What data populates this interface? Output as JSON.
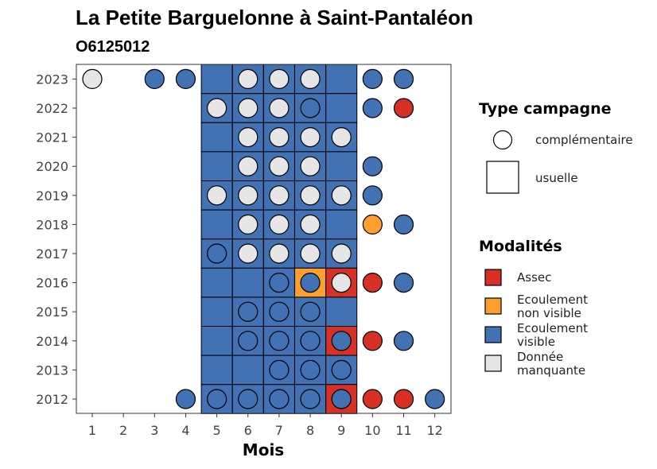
{
  "chart_data": {
    "type": "heatmap",
    "title": "La Petite Barguelonne à Saint-Pantaléon",
    "subtitle": "O6125012",
    "xlabel": "Mois",
    "ylabel": "",
    "x_ticks": [
      "1",
      "2",
      "3",
      "4",
      "5",
      "6",
      "7",
      "8",
      "9",
      "10",
      "11",
      "12"
    ],
    "y_ticks": [
      "2012",
      "2013",
      "2014",
      "2015",
      "2016",
      "2017",
      "2018",
      "2019",
      "2020",
      "2021",
      "2022",
      "2023"
    ],
    "grid": false,
    "legend_placement": "right",
    "shape_legend": {
      "title": "Type campagne",
      "entries": [
        {
          "label": "complémentaire",
          "shape": "circle"
        },
        {
          "label": "usuelle",
          "shape": "square"
        }
      ]
    },
    "color_legend": {
      "title": "Modalités",
      "entries": [
        {
          "key": "A",
          "label": [
            "Assec"
          ],
          "color": "#d73027"
        },
        {
          "key": "N",
          "label": [
            "Ecoulement",
            "non visible"
          ],
          "color": "#fd9f2f"
        },
        {
          "key": "V",
          "label": [
            "Ecoulement",
            "visible"
          ],
          "color": "#4271b4"
        },
        {
          "key": "M",
          "label": [
            "Donnée",
            "manquante"
          ],
          "color": "#e6e6e6"
        }
      ]
    },
    "squares": [
      {
        "year": 2023,
        "month": 5,
        "value": "V"
      },
      {
        "year": 2023,
        "month": 6,
        "value": "V"
      },
      {
        "year": 2023,
        "month": 7,
        "value": "V"
      },
      {
        "year": 2023,
        "month": 8,
        "value": "V"
      },
      {
        "year": 2023,
        "month": 9,
        "value": "V"
      },
      {
        "year": 2022,
        "month": 5,
        "value": "V"
      },
      {
        "year": 2022,
        "month": 6,
        "value": "V"
      },
      {
        "year": 2022,
        "month": 7,
        "value": "V"
      },
      {
        "year": 2022,
        "month": 8,
        "value": "V"
      },
      {
        "year": 2022,
        "month": 9,
        "value": "V"
      },
      {
        "year": 2021,
        "month": 5,
        "value": "V"
      },
      {
        "year": 2021,
        "month": 6,
        "value": "V"
      },
      {
        "year": 2021,
        "month": 7,
        "value": "V"
      },
      {
        "year": 2021,
        "month": 8,
        "value": "V"
      },
      {
        "year": 2021,
        "month": 9,
        "value": "V"
      },
      {
        "year": 2020,
        "month": 5,
        "value": "V"
      },
      {
        "year": 2020,
        "month": 6,
        "value": "V"
      },
      {
        "year": 2020,
        "month": 7,
        "value": "V"
      },
      {
        "year": 2020,
        "month": 8,
        "value": "V"
      },
      {
        "year": 2020,
        "month": 9,
        "value": "V"
      },
      {
        "year": 2019,
        "month": 5,
        "value": "V"
      },
      {
        "year": 2019,
        "month": 6,
        "value": "V"
      },
      {
        "year": 2019,
        "month": 7,
        "value": "V"
      },
      {
        "year": 2019,
        "month": 8,
        "value": "V"
      },
      {
        "year": 2019,
        "month": 9,
        "value": "V"
      },
      {
        "year": 2018,
        "month": 5,
        "value": "V"
      },
      {
        "year": 2018,
        "month": 6,
        "value": "V"
      },
      {
        "year": 2018,
        "month": 7,
        "value": "V"
      },
      {
        "year": 2018,
        "month": 8,
        "value": "V"
      },
      {
        "year": 2018,
        "month": 9,
        "value": "V"
      },
      {
        "year": 2017,
        "month": 5,
        "value": "V"
      },
      {
        "year": 2017,
        "month": 6,
        "value": "V"
      },
      {
        "year": 2017,
        "month": 7,
        "value": "V"
      },
      {
        "year": 2017,
        "month": 8,
        "value": "V"
      },
      {
        "year": 2017,
        "month": 9,
        "value": "V"
      },
      {
        "year": 2016,
        "month": 5,
        "value": "V"
      },
      {
        "year": 2016,
        "month": 6,
        "value": "V"
      },
      {
        "year": 2016,
        "month": 7,
        "value": "V"
      },
      {
        "year": 2016,
        "month": 8,
        "value": "N"
      },
      {
        "year": 2016,
        "month": 9,
        "value": "A"
      },
      {
        "year": 2015,
        "month": 5,
        "value": "V"
      },
      {
        "year": 2015,
        "month": 6,
        "value": "V"
      },
      {
        "year": 2015,
        "month": 7,
        "value": "V"
      },
      {
        "year": 2015,
        "month": 8,
        "value": "V"
      },
      {
        "year": 2015,
        "month": 9,
        "value": "V"
      },
      {
        "year": 2014,
        "month": 5,
        "value": "V"
      },
      {
        "year": 2014,
        "month": 6,
        "value": "V"
      },
      {
        "year": 2014,
        "month": 7,
        "value": "V"
      },
      {
        "year": 2014,
        "month": 8,
        "value": "V"
      },
      {
        "year": 2014,
        "month": 9,
        "value": "A"
      },
      {
        "year": 2013,
        "month": 5,
        "value": "V"
      },
      {
        "year": 2013,
        "month": 6,
        "value": "V"
      },
      {
        "year": 2013,
        "month": 7,
        "value": "V"
      },
      {
        "year": 2013,
        "month": 8,
        "value": "V"
      },
      {
        "year": 2013,
        "month": 9,
        "value": "V"
      },
      {
        "year": 2012,
        "month": 5,
        "value": "V"
      },
      {
        "year": 2012,
        "month": 6,
        "value": "V"
      },
      {
        "year": 2012,
        "month": 7,
        "value": "V"
      },
      {
        "year": 2012,
        "month": 8,
        "value": "V"
      },
      {
        "year": 2012,
        "month": 9,
        "value": "A"
      }
    ],
    "circles": [
      {
        "year": 2023,
        "month": 1,
        "value": "M"
      },
      {
        "year": 2023,
        "month": 3,
        "value": "V"
      },
      {
        "year": 2023,
        "month": 4,
        "value": "V"
      },
      {
        "year": 2023,
        "month": 6,
        "value": "M"
      },
      {
        "year": 2023,
        "month": 7,
        "value": "M"
      },
      {
        "year": 2023,
        "month": 8,
        "value": "M"
      },
      {
        "year": 2023,
        "month": 10,
        "value": "V"
      },
      {
        "year": 2023,
        "month": 11,
        "value": "V"
      },
      {
        "year": 2022,
        "month": 5,
        "value": "M"
      },
      {
        "year": 2022,
        "month": 6,
        "value": "M"
      },
      {
        "year": 2022,
        "month": 7,
        "value": "M"
      },
      {
        "year": 2022,
        "month": 8,
        "value": "V"
      },
      {
        "year": 2022,
        "month": 10,
        "value": "V"
      },
      {
        "year": 2022,
        "month": 11,
        "value": "A"
      },
      {
        "year": 2021,
        "month": 6,
        "value": "M"
      },
      {
        "year": 2021,
        "month": 7,
        "value": "M"
      },
      {
        "year": 2021,
        "month": 8,
        "value": "M"
      },
      {
        "year": 2021,
        "month": 9,
        "value": "M"
      },
      {
        "year": 2020,
        "month": 6,
        "value": "M"
      },
      {
        "year": 2020,
        "month": 7,
        "value": "M"
      },
      {
        "year": 2020,
        "month": 8,
        "value": "M"
      },
      {
        "year": 2020,
        "month": 10,
        "value": "V"
      },
      {
        "year": 2019,
        "month": 5,
        "value": "M"
      },
      {
        "year": 2019,
        "month": 6,
        "value": "M"
      },
      {
        "year": 2019,
        "month": 7,
        "value": "M"
      },
      {
        "year": 2019,
        "month": 8,
        "value": "M"
      },
      {
        "year": 2019,
        "month": 9,
        "value": "M"
      },
      {
        "year": 2019,
        "month": 10,
        "value": "V"
      },
      {
        "year": 2018,
        "month": 6,
        "value": "M"
      },
      {
        "year": 2018,
        "month": 7,
        "value": "M"
      },
      {
        "year": 2018,
        "month": 8,
        "value": "M"
      },
      {
        "year": 2018,
        "month": 10,
        "value": "N"
      },
      {
        "year": 2018,
        "month": 11,
        "value": "V"
      },
      {
        "year": 2017,
        "month": 5,
        "value": "V"
      },
      {
        "year": 2017,
        "month": 6,
        "value": "M"
      },
      {
        "year": 2017,
        "month": 7,
        "value": "M"
      },
      {
        "year": 2017,
        "month": 8,
        "value": "M"
      },
      {
        "year": 2017,
        "month": 9,
        "value": "M"
      },
      {
        "year": 2016,
        "month": 7,
        "value": "V"
      },
      {
        "year": 2016,
        "month": 8,
        "value": "V"
      },
      {
        "year": 2016,
        "month": 9,
        "value": "M"
      },
      {
        "year": 2016,
        "month": 10,
        "value": "A"
      },
      {
        "year": 2016,
        "month": 11,
        "value": "V"
      },
      {
        "year": 2015,
        "month": 6,
        "value": "V"
      },
      {
        "year": 2015,
        "month": 7,
        "value": "V"
      },
      {
        "year": 2015,
        "month": 8,
        "value": "V"
      },
      {
        "year": 2014,
        "month": 6,
        "value": "V"
      },
      {
        "year": 2014,
        "month": 7,
        "value": "V"
      },
      {
        "year": 2014,
        "month": 8,
        "value": "V"
      },
      {
        "year": 2014,
        "month": 9,
        "value": "V"
      },
      {
        "year": 2014,
        "month": 10,
        "value": "A"
      },
      {
        "year": 2014,
        "month": 11,
        "value": "V"
      },
      {
        "year": 2013,
        "month": 7,
        "value": "V"
      },
      {
        "year": 2013,
        "month": 8,
        "value": "V"
      },
      {
        "year": 2013,
        "month": 9,
        "value": "V"
      },
      {
        "year": 2012,
        "month": 4,
        "value": "V"
      },
      {
        "year": 2012,
        "month": 5,
        "value": "V"
      },
      {
        "year": 2012,
        "month": 6,
        "value": "V"
      },
      {
        "year": 2012,
        "month": 7,
        "value": "V"
      },
      {
        "year": 2012,
        "month": 8,
        "value": "V"
      },
      {
        "year": 2012,
        "month": 9,
        "value": "V"
      },
      {
        "year": 2012,
        "month": 10,
        "value": "A"
      },
      {
        "year": 2012,
        "month": 11,
        "value": "A"
      },
      {
        "year": 2012,
        "month": 12,
        "value": "V"
      }
    ]
  }
}
